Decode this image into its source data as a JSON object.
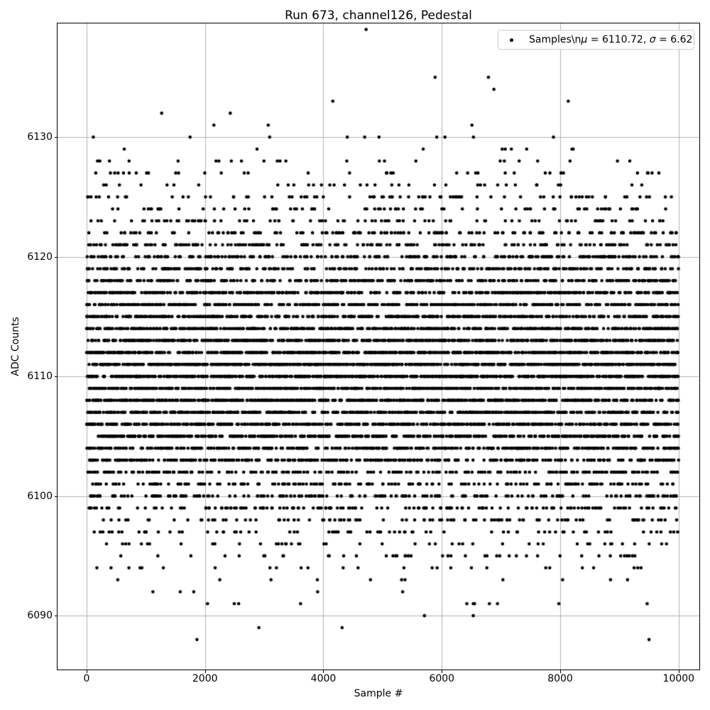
{
  "figure": {
    "title": "Run 673, channel126, Pedestal",
    "xlabel": "Sample #",
    "ylabel": "ADC Counts",
    "background": "#ffffff"
  },
  "legend": {
    "label": "Samples\\nμ = 6110.72, σ = 6.62",
    "segments": [
      {
        "text": "Samples\\n"
      },
      {
        "text": "μ",
        "italic": true
      },
      {
        "text": " = 6110.72, "
      },
      {
        "text": "σ",
        "italic": true
      },
      {
        "text": " = 6.62"
      }
    ],
    "marker": "black-dot",
    "position": "upper right"
  },
  "chart_data": {
    "type": "scatter",
    "title": "Run 673, channel126, Pedestal",
    "xlabel": "Sample #",
    "ylabel": "ADC Counts",
    "x_ticks": [
      0,
      2000,
      4000,
      6000,
      8000,
      10000
    ],
    "y_ticks": [
      6090,
      6100,
      6110,
      6120,
      6130
    ],
    "xlim": [
      -491,
      10350
    ],
    "ylim": [
      6085.5,
      6139.5
    ],
    "grid": true,
    "grid_color": "#b0b0b0",
    "axes_color": "#000000",
    "marker_color": "#000000",
    "marker_radius_px": 2.3,
    "legend_position": "upper right",
    "n_samples": 10000,
    "seed": 673,
    "x_description": "sample index 0 to 9999",
    "y_description": "integer-quantized ADC counts, Gaussian distributed",
    "stats": {
      "mu": 6110.72,
      "sigma": 6.62,
      "observed_min": 6088,
      "observed_max": 6137
    }
  }
}
